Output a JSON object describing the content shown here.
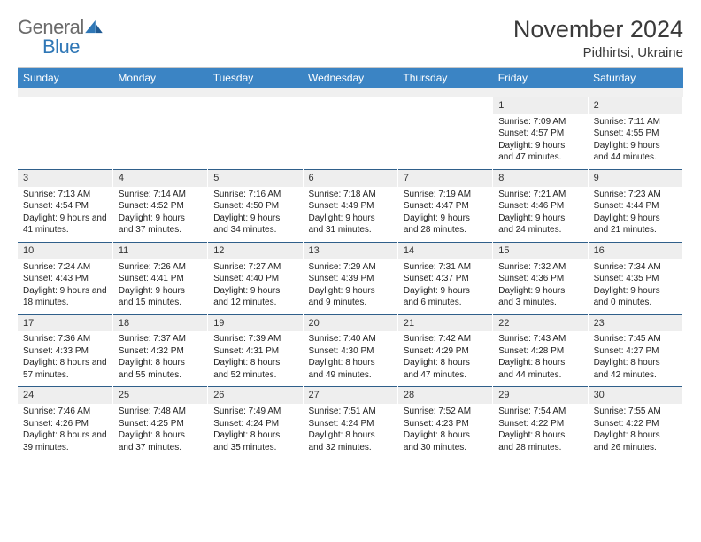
{
  "brand": {
    "word1": "General",
    "word2": "Blue"
  },
  "title": "November 2024",
  "location": "Pidhirtsi, Ukraine",
  "colors": {
    "header_bg": "#3b84c4",
    "header_text": "#ffffff",
    "daynum_bg": "#eeeeee",
    "rule": "#2f5f8a",
    "logo_gray": "#6b6b6b",
    "logo_blue": "#2f77b6"
  },
  "weekdays": [
    "Sunday",
    "Monday",
    "Tuesday",
    "Wednesday",
    "Thursday",
    "Friday",
    "Saturday"
  ],
  "weeks": [
    [
      {
        "blank": true
      },
      {
        "blank": true
      },
      {
        "blank": true
      },
      {
        "blank": true
      },
      {
        "blank": true
      },
      {
        "day": "1",
        "sunrise": "Sunrise: 7:09 AM",
        "sunset": "Sunset: 4:57 PM",
        "daylight": "Daylight: 9 hours and 47 minutes."
      },
      {
        "day": "2",
        "sunrise": "Sunrise: 7:11 AM",
        "sunset": "Sunset: 4:55 PM",
        "daylight": "Daylight: 9 hours and 44 minutes."
      }
    ],
    [
      {
        "day": "3",
        "sunrise": "Sunrise: 7:13 AM",
        "sunset": "Sunset: 4:54 PM",
        "daylight": "Daylight: 9 hours and 41 minutes."
      },
      {
        "day": "4",
        "sunrise": "Sunrise: 7:14 AM",
        "sunset": "Sunset: 4:52 PM",
        "daylight": "Daylight: 9 hours and 37 minutes."
      },
      {
        "day": "5",
        "sunrise": "Sunrise: 7:16 AM",
        "sunset": "Sunset: 4:50 PM",
        "daylight": "Daylight: 9 hours and 34 minutes."
      },
      {
        "day": "6",
        "sunrise": "Sunrise: 7:18 AM",
        "sunset": "Sunset: 4:49 PM",
        "daylight": "Daylight: 9 hours and 31 minutes."
      },
      {
        "day": "7",
        "sunrise": "Sunrise: 7:19 AM",
        "sunset": "Sunset: 4:47 PM",
        "daylight": "Daylight: 9 hours and 28 minutes."
      },
      {
        "day": "8",
        "sunrise": "Sunrise: 7:21 AM",
        "sunset": "Sunset: 4:46 PM",
        "daylight": "Daylight: 9 hours and 24 minutes."
      },
      {
        "day": "9",
        "sunrise": "Sunrise: 7:23 AM",
        "sunset": "Sunset: 4:44 PM",
        "daylight": "Daylight: 9 hours and 21 minutes."
      }
    ],
    [
      {
        "day": "10",
        "sunrise": "Sunrise: 7:24 AM",
        "sunset": "Sunset: 4:43 PM",
        "daylight": "Daylight: 9 hours and 18 minutes."
      },
      {
        "day": "11",
        "sunrise": "Sunrise: 7:26 AM",
        "sunset": "Sunset: 4:41 PM",
        "daylight": "Daylight: 9 hours and 15 minutes."
      },
      {
        "day": "12",
        "sunrise": "Sunrise: 7:27 AM",
        "sunset": "Sunset: 4:40 PM",
        "daylight": "Daylight: 9 hours and 12 minutes."
      },
      {
        "day": "13",
        "sunrise": "Sunrise: 7:29 AM",
        "sunset": "Sunset: 4:39 PM",
        "daylight": "Daylight: 9 hours and 9 minutes."
      },
      {
        "day": "14",
        "sunrise": "Sunrise: 7:31 AM",
        "sunset": "Sunset: 4:37 PM",
        "daylight": "Daylight: 9 hours and 6 minutes."
      },
      {
        "day": "15",
        "sunrise": "Sunrise: 7:32 AM",
        "sunset": "Sunset: 4:36 PM",
        "daylight": "Daylight: 9 hours and 3 minutes."
      },
      {
        "day": "16",
        "sunrise": "Sunrise: 7:34 AM",
        "sunset": "Sunset: 4:35 PM",
        "daylight": "Daylight: 9 hours and 0 minutes."
      }
    ],
    [
      {
        "day": "17",
        "sunrise": "Sunrise: 7:36 AM",
        "sunset": "Sunset: 4:33 PM",
        "daylight": "Daylight: 8 hours and 57 minutes."
      },
      {
        "day": "18",
        "sunrise": "Sunrise: 7:37 AM",
        "sunset": "Sunset: 4:32 PM",
        "daylight": "Daylight: 8 hours and 55 minutes."
      },
      {
        "day": "19",
        "sunrise": "Sunrise: 7:39 AM",
        "sunset": "Sunset: 4:31 PM",
        "daylight": "Daylight: 8 hours and 52 minutes."
      },
      {
        "day": "20",
        "sunrise": "Sunrise: 7:40 AM",
        "sunset": "Sunset: 4:30 PM",
        "daylight": "Daylight: 8 hours and 49 minutes."
      },
      {
        "day": "21",
        "sunrise": "Sunrise: 7:42 AM",
        "sunset": "Sunset: 4:29 PM",
        "daylight": "Daylight: 8 hours and 47 minutes."
      },
      {
        "day": "22",
        "sunrise": "Sunrise: 7:43 AM",
        "sunset": "Sunset: 4:28 PM",
        "daylight": "Daylight: 8 hours and 44 minutes."
      },
      {
        "day": "23",
        "sunrise": "Sunrise: 7:45 AM",
        "sunset": "Sunset: 4:27 PM",
        "daylight": "Daylight: 8 hours and 42 minutes."
      }
    ],
    [
      {
        "day": "24",
        "sunrise": "Sunrise: 7:46 AM",
        "sunset": "Sunset: 4:26 PM",
        "daylight": "Daylight: 8 hours and 39 minutes."
      },
      {
        "day": "25",
        "sunrise": "Sunrise: 7:48 AM",
        "sunset": "Sunset: 4:25 PM",
        "daylight": "Daylight: 8 hours and 37 minutes."
      },
      {
        "day": "26",
        "sunrise": "Sunrise: 7:49 AM",
        "sunset": "Sunset: 4:24 PM",
        "daylight": "Daylight: 8 hours and 35 minutes."
      },
      {
        "day": "27",
        "sunrise": "Sunrise: 7:51 AM",
        "sunset": "Sunset: 4:24 PM",
        "daylight": "Daylight: 8 hours and 32 minutes."
      },
      {
        "day": "28",
        "sunrise": "Sunrise: 7:52 AM",
        "sunset": "Sunset: 4:23 PM",
        "daylight": "Daylight: 8 hours and 30 minutes."
      },
      {
        "day": "29",
        "sunrise": "Sunrise: 7:54 AM",
        "sunset": "Sunset: 4:22 PM",
        "daylight": "Daylight: 8 hours and 28 minutes."
      },
      {
        "day": "30",
        "sunrise": "Sunrise: 7:55 AM",
        "sunset": "Sunset: 4:22 PM",
        "daylight": "Daylight: 8 hours and 26 minutes."
      }
    ]
  ]
}
